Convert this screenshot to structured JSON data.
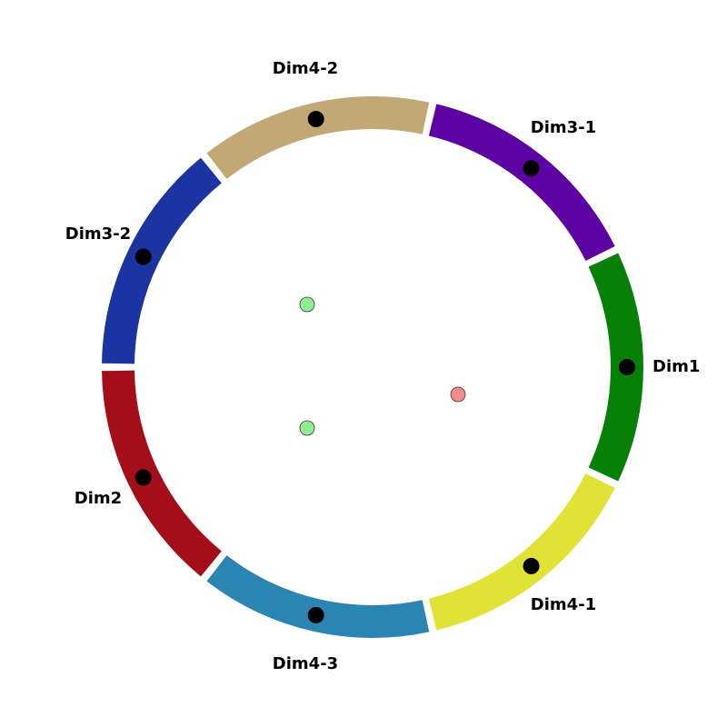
{
  "diagram": {
    "segments": [
      {
        "id": "dim1",
        "label": "Dim1",
        "color": "#068006"
      },
      {
        "id": "dim3_1",
        "label": "Dim3-1",
        "color": "#5e03a3"
      },
      {
        "id": "dim4_2",
        "label": "Dim4-2",
        "color": "#c2a875"
      },
      {
        "id": "dim3_2",
        "label": "Dim3-2",
        "color": "#1b34a1"
      },
      {
        "id": "dim2",
        "label": "Dim2",
        "color": "#a30e18"
      },
      {
        "id": "dim4_3",
        "label": "Dim4-3",
        "color": "#2b85b3"
      },
      {
        "id": "dim4_1",
        "label": "Dim4-1",
        "color": "#e1e236"
      }
    ],
    "marker_color": "#000000",
    "inner_points": [
      {
        "id": "point-1",
        "color": "#90ee90"
      },
      {
        "id": "point-2",
        "color": "#90ee90"
      },
      {
        "id": "point-3",
        "color": "#f08c8c"
      }
    ]
  }
}
